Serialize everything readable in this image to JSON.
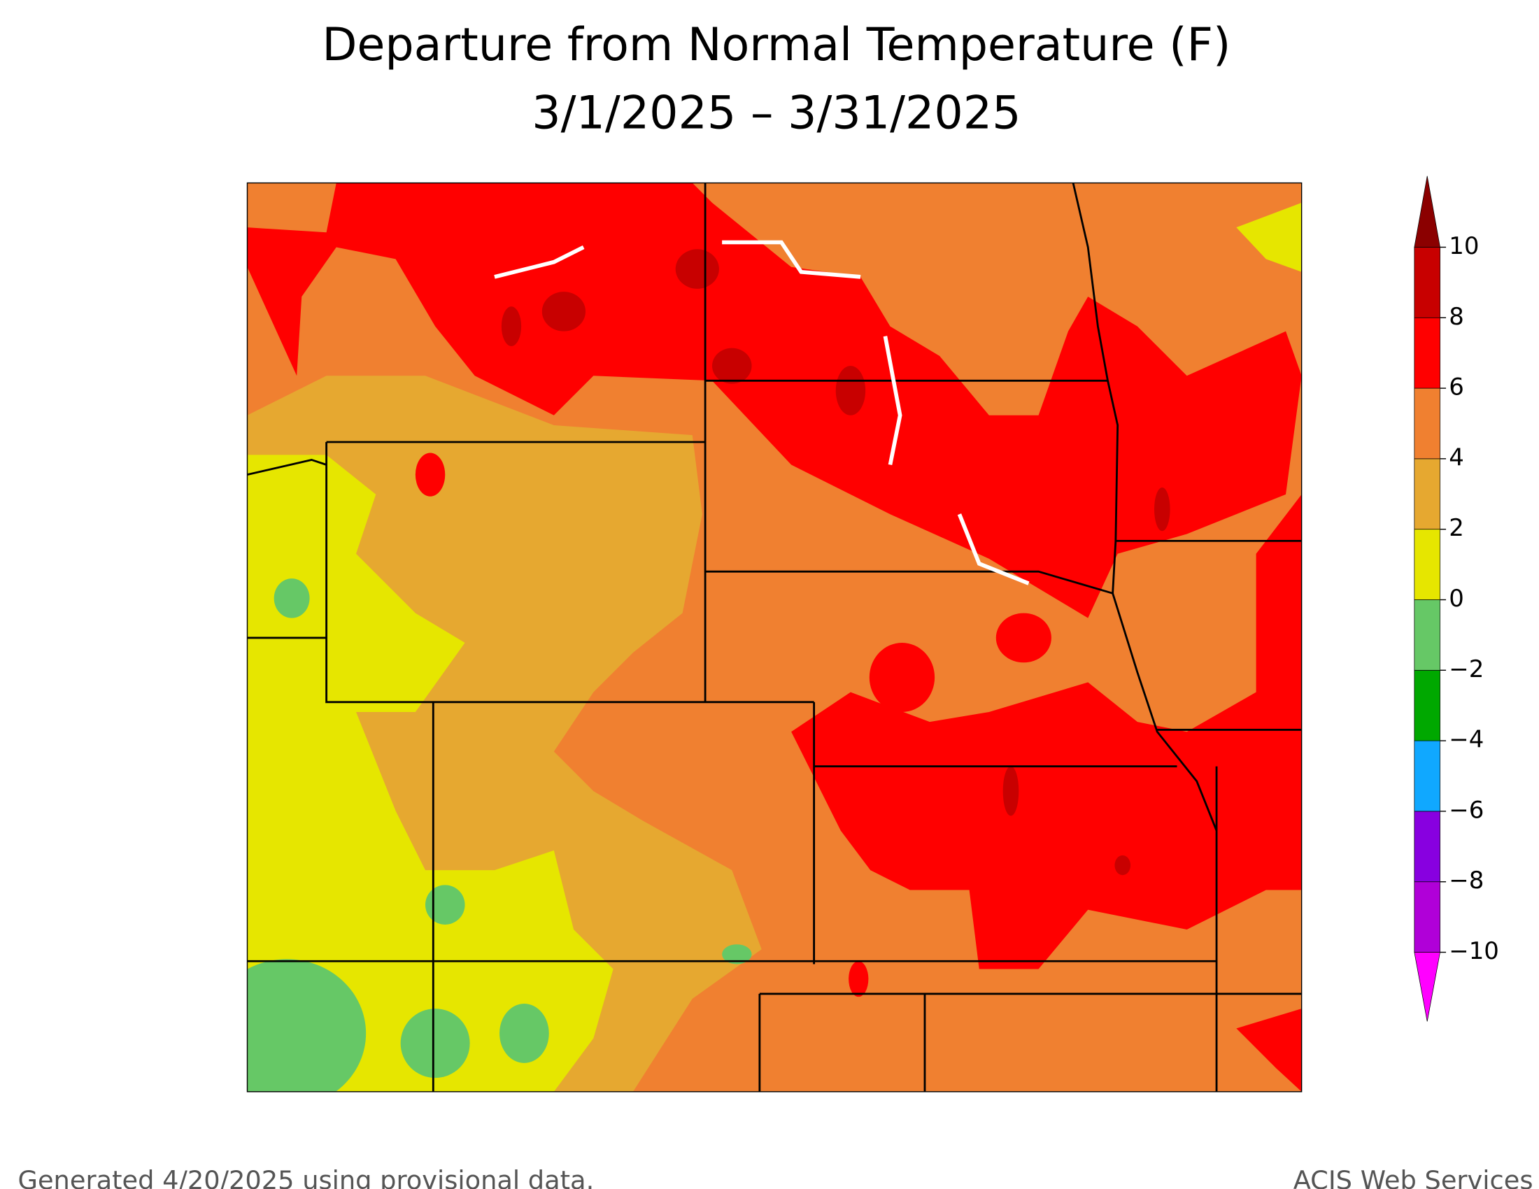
{
  "title": [
    "Departure from Normal Temperature (F)",
    "3/1/2025 – 3/31/2025"
  ],
  "legend": {
    "ticks": [
      {
        "value": -10,
        "label": "−10"
      },
      {
        "value": -8,
        "label": "−8"
      },
      {
        "value": -6,
        "label": "−6"
      },
      {
        "value": -4,
        "label": "−4"
      },
      {
        "value": -2,
        "label": "−2"
      },
      0,
      2,
      4,
      6,
      8,
      10
    ],
    "colors": [
      "#b000d8",
      "#8800e0",
      "#10a8ff",
      "#00a800",
      "#66c866",
      "#e6e600",
      "#e6a830",
      "#f08030",
      "#ff0000",
      "#c80000"
    ],
    "under_color": "#ff00ff",
    "over_color": "#8b0000"
  },
  "footer": {
    "left": "Generated 4/20/2025 using provisional data.",
    "right": "ACIS Web Services"
  }
}
